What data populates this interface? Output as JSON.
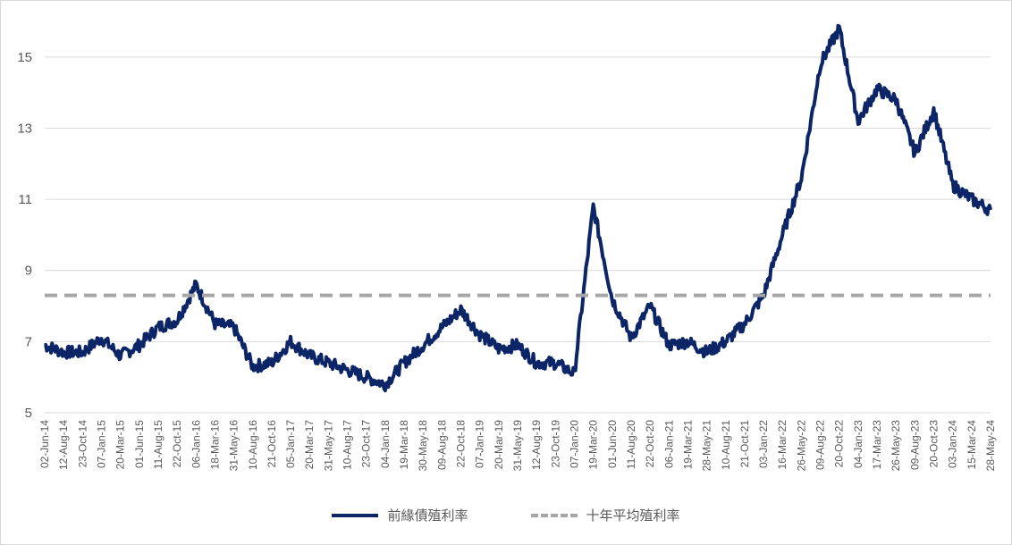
{
  "chart_data": {
    "type": "line",
    "title": "",
    "xlabel": "",
    "ylabel": "",
    "ylim": [
      5,
      16
    ],
    "y_ticks": [
      "5",
      "7",
      "9",
      "11",
      "13",
      "15"
    ],
    "grid": "horizontal",
    "legend_placement": "bottom",
    "x_tick_labels": [
      "02-Jun-14",
      "12-Aug-14",
      "23-Oct-14",
      "07-Jan-15",
      "20-Mar-15",
      "01-Jun-15",
      "11-Aug-15",
      "22-Oct-15",
      "06-Jan-16",
      "18-Mar-16",
      "31-May-16",
      "10-Aug-16",
      "21-Oct-16",
      "05-Jan-17",
      "20-Mar-17",
      "31-May-17",
      "10-Aug-17",
      "23-Oct-17",
      "04-Jan-18",
      "19-Mar-18",
      "30-May-18",
      "09-Aug-18",
      "22-Oct-18",
      "07-Jan-19",
      "20-Mar-19",
      "31-May-19",
      "12-Aug-19",
      "23-Oct-19",
      "07-Jan-20",
      "19-Mar-20",
      "01-Jun-20",
      "11-Aug-20",
      "22-Oct-20",
      "06-Jan-21",
      "19-Mar-21",
      "28-May-21",
      "10-Aug-21",
      "21-Oct-21",
      "03-Jan-22",
      "16-Mar-22",
      "26-May-22",
      "09-Aug-22",
      "20-Oct-22",
      "04-Jan-23",
      "17-Mar-23",
      "26-May-23",
      "09-Aug-23",
      "20-Oct-23",
      "03-Jan-24",
      "15-Mar-24",
      "28-May-24"
    ],
    "series": [
      {
        "name": "前緣債殖利率",
        "color": "#0b2566",
        "style": "solid",
        "x": [
          "02-Jun-14",
          "12-Aug-14",
          "23-Oct-14",
          "07-Jan-15",
          "20-Mar-15",
          "01-Jun-15",
          "11-Aug-15",
          "22-Oct-15",
          "06-Jan-16",
          "18-Mar-16",
          "31-May-16",
          "10-Aug-16",
          "21-Oct-16",
          "05-Jan-17",
          "20-Mar-17",
          "31-May-17",
          "10-Aug-17",
          "23-Oct-17",
          "04-Jan-18",
          "19-Mar-18",
          "30-May-18",
          "09-Aug-18",
          "22-Oct-18",
          "07-Jan-19",
          "20-Mar-19",
          "31-May-19",
          "12-Aug-19",
          "23-Oct-19",
          "07-Jan-20",
          "19-Mar-20",
          "01-Jun-20",
          "11-Aug-20",
          "22-Oct-20",
          "06-Jan-21",
          "19-Mar-21",
          "28-May-21",
          "10-Aug-21",
          "21-Oct-21",
          "03-Jan-22",
          "16-Mar-22",
          "26-May-22",
          "09-Aug-22",
          "20-Oct-22",
          "04-Jan-23",
          "17-Mar-23",
          "26-May-23",
          "09-Aug-23",
          "20-Oct-23",
          "03-Jan-24",
          "15-Mar-24",
          "28-May-24"
        ],
        "values": [
          6.9,
          6.7,
          6.7,
          7.1,
          6.6,
          6.9,
          7.4,
          7.6,
          8.6,
          7.5,
          7.4,
          6.3,
          6.4,
          7.0,
          6.6,
          6.4,
          6.2,
          6.0,
          5.8,
          6.4,
          6.9,
          7.4,
          7.9,
          7.2,
          6.8,
          6.9,
          6.4,
          6.4,
          6.1,
          10.8,
          8.2,
          7.1,
          8.0,
          6.9,
          7.0,
          6.7,
          7.0,
          7.5,
          8.3,
          10.0,
          11.6,
          14.8,
          15.8,
          13.2,
          14.1,
          13.8,
          12.3,
          13.5,
          11.4,
          11.0,
          10.7
        ]
      },
      {
        "name": "十年平均殖利率",
        "color": "#a6a6a6",
        "style": "dashed",
        "constant": 8.3
      }
    ]
  }
}
